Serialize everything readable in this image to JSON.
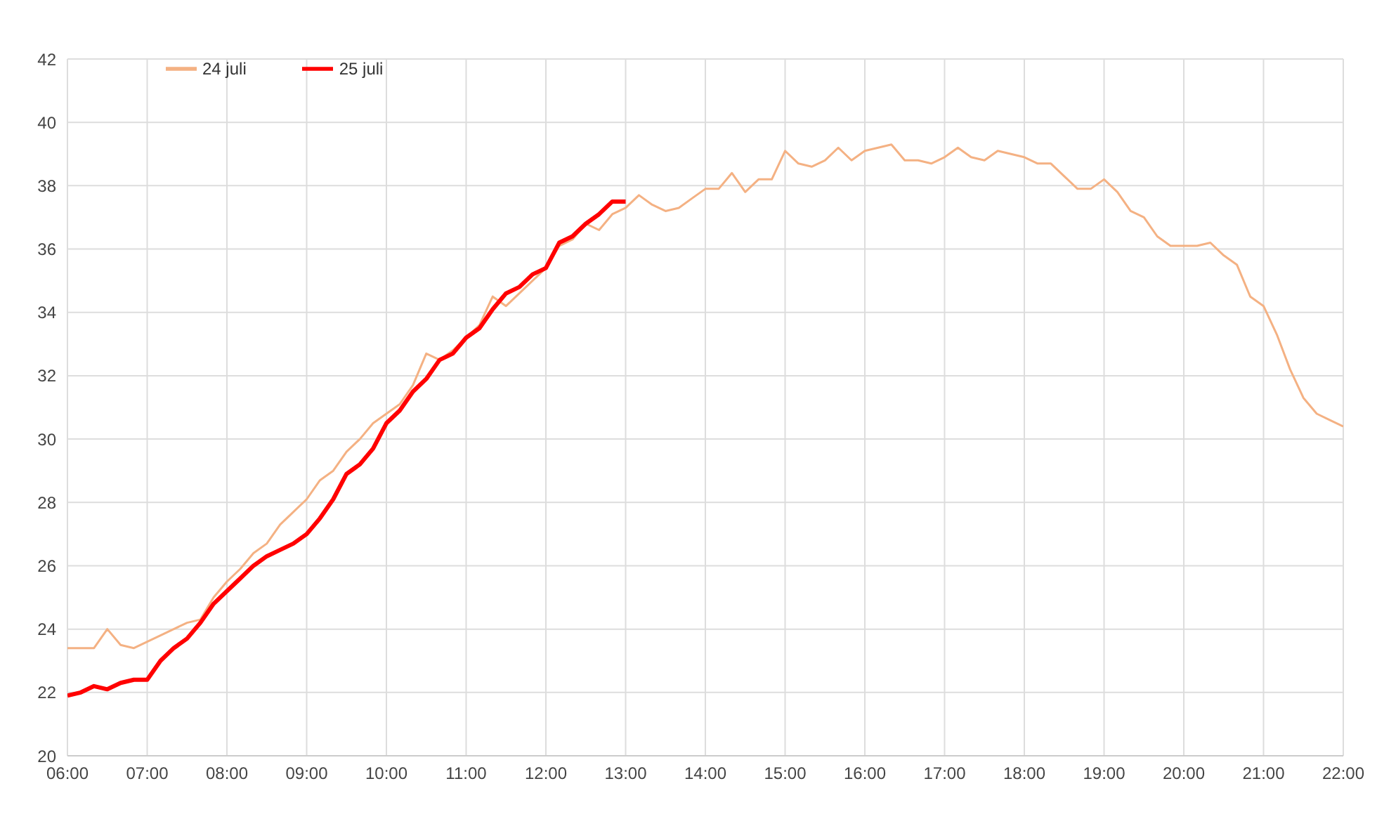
{
  "chart_data": {
    "type": "line",
    "xlim": [
      6,
      22
    ],
    "xticks": [
      {
        "value": 6,
        "label": "06:00"
      },
      {
        "value": 7,
        "label": "07:00"
      },
      {
        "value": 8,
        "label": "08:00"
      },
      {
        "value": 9,
        "label": "09:00"
      },
      {
        "value": 10,
        "label": "10:00"
      },
      {
        "value": 11,
        "label": "11:00"
      },
      {
        "value": 12,
        "label": "12:00"
      },
      {
        "value": 13,
        "label": "13:00"
      },
      {
        "value": 14,
        "label": "14:00"
      },
      {
        "value": 15,
        "label": "15:00"
      },
      {
        "value": 16,
        "label": "16:00"
      },
      {
        "value": 17,
        "label": "17:00"
      },
      {
        "value": 18,
        "label": "18:00"
      },
      {
        "value": 19,
        "label": "19:00"
      },
      {
        "value": 20,
        "label": "20:00"
      },
      {
        "value": 21,
        "label": "21:00"
      },
      {
        "value": 22,
        "label": "22:00"
      }
    ],
    "ylim": [
      20,
      42
    ],
    "yticks": [
      20,
      22,
      24,
      26,
      28,
      30,
      32,
      34,
      36,
      38,
      40,
      42
    ],
    "grid": true,
    "legend": "top left",
    "marker": "none",
    "line_style": "solid",
    "series": [
      {
        "name": "24 juli",
        "color": "#f4b183",
        "x": [
          6,
          6.167,
          6.333,
          6.5,
          6.667,
          6.833,
          7,
          7.167,
          7.333,
          7.5,
          7.667,
          7.833,
          8,
          8.167,
          8.333,
          8.5,
          8.667,
          8.833,
          9,
          9.167,
          9.333,
          9.5,
          9.667,
          9.833,
          10,
          10.167,
          10.333,
          10.5,
          10.667,
          10.833,
          11,
          11.167,
          11.333,
          11.5,
          11.667,
          11.833,
          12,
          12.167,
          12.333,
          12.5,
          12.667,
          12.833,
          13,
          13.167,
          13.333,
          13.5,
          13.667,
          13.833,
          14,
          14.167,
          14.333,
          14.5,
          14.667,
          14.833,
          15,
          15.167,
          15.333,
          15.5,
          15.667,
          15.833,
          16,
          16.167,
          16.333,
          16.5,
          16.667,
          16.833,
          17,
          17.167,
          17.333,
          17.5,
          17.667,
          17.833,
          18,
          18.167,
          18.333,
          18.5,
          18.667,
          18.833,
          19,
          19.167,
          19.333,
          19.5,
          19.667,
          19.833,
          20,
          20.167,
          20.333,
          20.5,
          20.667,
          20.833,
          21,
          21.167,
          21.333,
          21.5,
          21.667,
          21.833,
          22
        ],
        "values": [
          23.4,
          23.4,
          23.4,
          24.0,
          23.5,
          23.4,
          23.6,
          23.8,
          24.0,
          24.2,
          24.3,
          25.0,
          25.5,
          25.9,
          26.4,
          26.7,
          27.3,
          27.7,
          28.1,
          28.7,
          29.0,
          29.6,
          30.0,
          30.5,
          30.8,
          31.1,
          31.7,
          32.7,
          32.5,
          32.8,
          33.2,
          33.6,
          34.5,
          34.2,
          34.6,
          35.0,
          35.4,
          36.1,
          36.3,
          36.8,
          36.6,
          37.1,
          37.3,
          37.7,
          37.4,
          37.2,
          37.3,
          37.6,
          37.9,
          37.9,
          38.4,
          37.8,
          38.2,
          38.2,
          39.1,
          38.7,
          38.6,
          38.8,
          39.2,
          38.8,
          39.1,
          39.2,
          39.3,
          38.8,
          38.8,
          38.7,
          38.9,
          39.2,
          38.9,
          38.8,
          39.1,
          39.0,
          38.9,
          38.7,
          38.7,
          38.3,
          37.9,
          37.9,
          38.2,
          37.8,
          37.2,
          37.0,
          36.4,
          36.1,
          36.1,
          36.1,
          36.2,
          35.8,
          35.5,
          34.5,
          34.2,
          33.3,
          32.2,
          31.3,
          30.8,
          30.6,
          30.4
        ]
      },
      {
        "name": "25 juli",
        "color": "#ff0000",
        "x": [
          6,
          6.167,
          6.333,
          6.5,
          6.667,
          6.833,
          7,
          7.167,
          7.333,
          7.5,
          7.667,
          7.833,
          8,
          8.167,
          8.333,
          8.5,
          8.667,
          8.833,
          9,
          9.167,
          9.333,
          9.5,
          9.667,
          9.833,
          10,
          10.167,
          10.333,
          10.5,
          10.667,
          10.833,
          11,
          11.167,
          11.333,
          11.5,
          11.667,
          11.833,
          12,
          12.167,
          12.333,
          12.5,
          12.667,
          12.833,
          13
        ],
        "values": [
          21.9,
          22.0,
          22.2,
          22.1,
          22.3,
          22.4,
          22.4,
          23.0,
          23.4,
          23.7,
          24.2,
          24.8,
          25.2,
          25.6,
          26.0,
          26.3,
          26.5,
          26.7,
          27.0,
          27.5,
          28.1,
          28.9,
          29.2,
          29.7,
          30.5,
          30.9,
          31.5,
          31.9,
          32.5,
          32.7,
          33.2,
          33.5,
          34.1,
          34.6,
          34.8,
          35.2,
          35.4,
          36.2,
          36.4,
          36.8,
          37.1,
          37.5,
          37.5
        ]
      }
    ]
  }
}
